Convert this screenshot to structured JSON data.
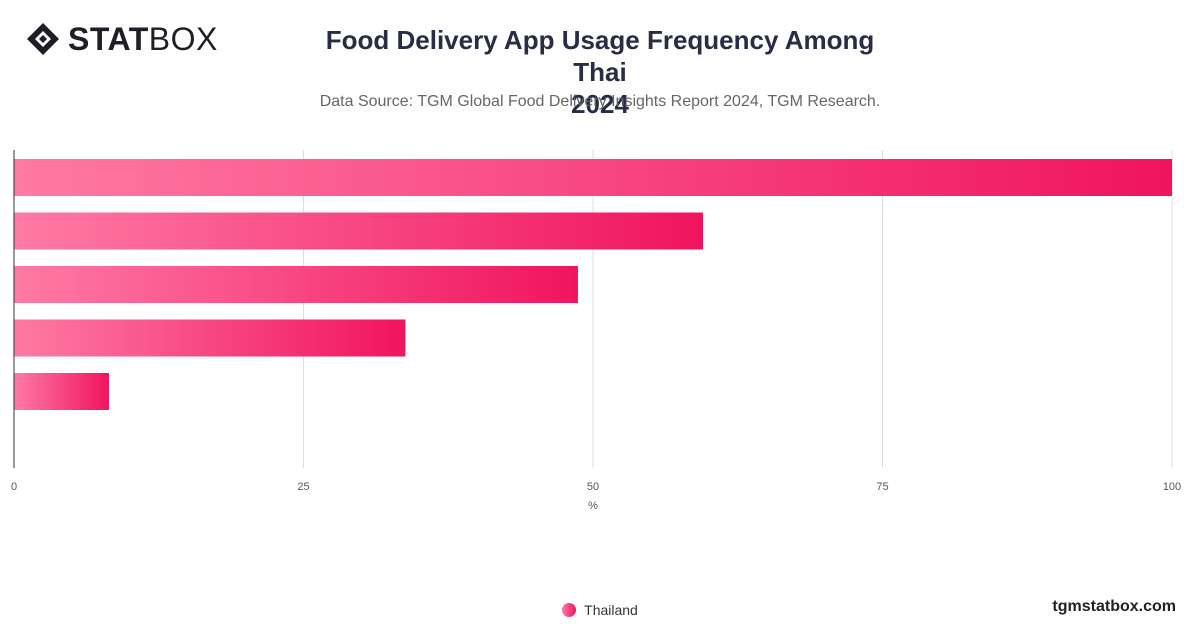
{
  "brand": {
    "strong": "STAT",
    "light": "BOX",
    "website": "tgmstatbox.com"
  },
  "header": {
    "title_line1": "Food Delivery App Usage Frequency Among Thai",
    "title_line2": "2024",
    "subtitle": "Data Source: TGM Global Food Delivery Insights Report 2024, TGM Research."
  },
  "chart_data": {
    "type": "bar",
    "orientation": "horizontal",
    "categories": [
      "",
      "",
      "",
      "",
      ""
    ],
    "series": [
      {
        "name": "Thailand",
        "values": [
          100,
          59.5,
          48.7,
          33.8,
          8.2
        ]
      }
    ],
    "xlabel": "%",
    "xlim": [
      0,
      100
    ],
    "xticks": [
      0,
      25,
      50,
      75,
      100
    ],
    "grid": true,
    "legend_position": "bottom-center",
    "colors": {
      "bar_start": "#ff7aa5",
      "bar_end": "#f0145f",
      "grid": "#dddddd",
      "axis": "#333333"
    }
  },
  "legend": {
    "label": "Thailand"
  }
}
